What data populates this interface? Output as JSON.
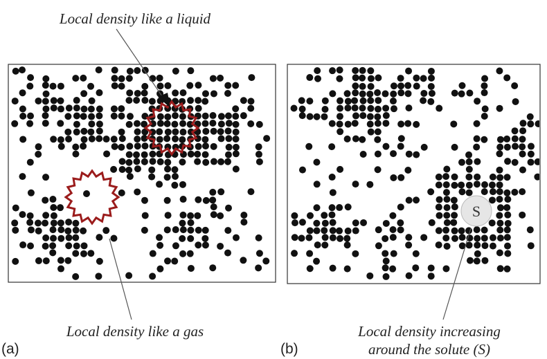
{
  "top_label": "Local density like a liquid",
  "panel_a": {
    "label": "(a)",
    "annotation": "Local density like a gas"
  },
  "panel_b": {
    "label": "(b)",
    "solute": "S",
    "annotation_lines": [
      "Local density increasing",
      "around the solute (S)"
    ]
  }
}
